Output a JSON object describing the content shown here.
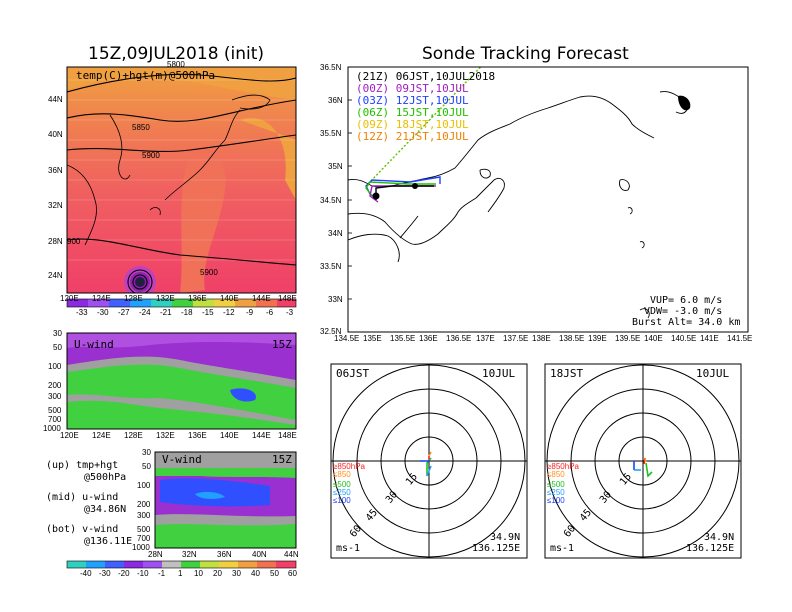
{
  "left": {
    "title": "15Z,09JUL2018 (init)",
    "map_label": "temp(C)+hgt(m)@500hPa",
    "contour_labels": [
      "5800",
      "5850",
      "5900",
      "5900",
      "900"
    ],
    "lat_ticks": [
      "44N",
      "40N",
      "36N",
      "32N",
      "28N",
      "24N"
    ],
    "lon_ticks": [
      "120E",
      "124E",
      "128E",
      "132E",
      "136E",
      "140E",
      "144E",
      "148E"
    ],
    "temp_colorbar": [
      "-33",
      "-30",
      "-27",
      "-24",
      "-21",
      "-18",
      "-15",
      "-12",
      "-9",
      "-6",
      "-3"
    ],
    "u_panel": {
      "label": "U-wind",
      "time": "15Z",
      "p_ticks": [
        "30",
        "50",
        "100",
        "200",
        "300",
        "500",
        "700",
        "1000"
      ],
      "x_ticks": [
        "120E",
        "124E",
        "128E",
        "132E",
        "136E",
        "140E",
        "144E",
        "148E"
      ]
    },
    "v_panel": {
      "label": "V-wind",
      "time": "15Z",
      "p_ticks": [
        "30",
        "50",
        "100",
        "200",
        "300",
        "500",
        "700",
        "1000"
      ],
      "x_ticks": [
        "28N",
        "32N",
        "36N",
        "40N",
        "44N"
      ]
    },
    "notes": [
      {
        "a": "(up) tmp+hgt",
        "b": "@500hPa"
      },
      {
        "a": "(mid) u-wind",
        "b": "@34.86N"
      },
      {
        "a": "(bot) v-wind",
        "b": "@136.11E"
      }
    ],
    "wind_colorbar": [
      "-40",
      "-30",
      "-20",
      "-10",
      "-1",
      "1",
      "10",
      "20",
      "30",
      "40",
      "50",
      "60"
    ]
  },
  "track": {
    "title": "Sonde Tracking Forecast",
    "legend": [
      {
        "text": "(21Z) 06JST,10JUL2018",
        "color": "#000000"
      },
      {
        "text": "(00Z) 09JST,10JUL",
        "color": "#a020c0"
      },
      {
        "text": "(03Z) 12JST,10JUL",
        "color": "#1f3fff"
      },
      {
        "text": "(06Z) 15JST,10JUL",
        "color": "#22c000"
      },
      {
        "text": "(09Z) 18JST,10JUL",
        "color": "#e8c000"
      },
      {
        "text": "(12Z) 21JST,10JUL",
        "color": "#f08000"
      }
    ],
    "lat_ticks": [
      "36.5N",
      "36N",
      "35.5N",
      "35N",
      "34.5N",
      "34N",
      "33.5N",
      "33N",
      "32.5N"
    ],
    "lon_ticks": [
      "134.5E",
      "135E",
      "135.5E",
      "136E",
      "136.5E",
      "137E",
      "137.5E",
      "138E",
      "138.5E",
      "139E",
      "139.5E",
      "140E",
      "140.5E",
      "141E",
      "141.5E"
    ],
    "info": [
      "VUP= 6.0 m/s",
      "VDW= -3.0 m/s",
      "Burst Alt= 34.0 km"
    ]
  },
  "hodo": [
    {
      "time": "06JST",
      "date": "10JUL",
      "lat": "34.9N",
      "lon": "136.125E",
      "unit": "ms-1",
      "rings": [
        "15",
        "30",
        "45",
        "60"
      ],
      "levels": [
        {
          "t": "≥850hPa",
          "c": "#ff2020"
        },
        {
          "t": "≤850",
          "c": "#ff9020"
        },
        {
          "t": "≤500",
          "c": "#20c020"
        },
        {
          "t": "≤250",
          "c": "#20a0ff"
        },
        {
          "t": "≤100",
          "c": "#1f3fff"
        }
      ]
    },
    {
      "time": "18JST",
      "date": "10JUL",
      "lat": "34.9N",
      "lon": "136.125E",
      "unit": "ms-1",
      "rings": [
        "15",
        "30",
        "45",
        "60"
      ],
      "levels": [
        {
          "t": "≥850hPa",
          "c": "#ff2020"
        },
        {
          "t": "≤850",
          "c": "#ff9020"
        },
        {
          "t": "≤500",
          "c": "#20c020"
        },
        {
          "t": "≤250",
          "c": "#20a0ff"
        },
        {
          "t": "≤100",
          "c": "#1f3fff"
        }
      ]
    }
  ]
}
